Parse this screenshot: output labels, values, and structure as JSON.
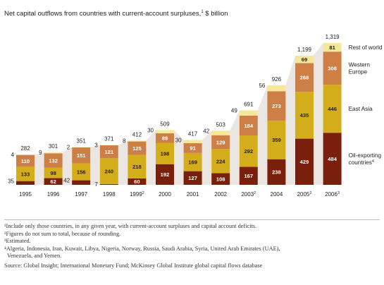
{
  "title": "Net capital outflows from countries with current-account surpluses,",
  "title_sup": "1",
  "title_unit": " $ billion",
  "colors": {
    "oil": "#7a1f0c",
    "east_asia": "#d4ad1a",
    "western_europe": "#cd7f45",
    "rest_of_world": "#f6e79a",
    "ribbon": "#ece6e2"
  },
  "chart_data": {
    "type": "bar",
    "stacked": true,
    "categories": [
      "1995",
      "1996",
      "1997",
      "1998",
      "1999",
      "2000",
      "2001",
      "2002",
      "2003",
      "2004",
      "2005",
      "2006"
    ],
    "category_sups": [
      "",
      "",
      "",
      "",
      "2",
      "",
      "",
      "",
      "2",
      "",
      "2",
      "3"
    ],
    "series": [
      {
        "key": "oil",
        "name": "Oil-exporting countries",
        "name_lines": [
          "Oil-exporting",
          "countries"
        ],
        "name_sup": "4",
        "values": [
          35,
          62,
          42,
          7,
          60,
          192,
          127,
          108,
          167,
          238,
          429,
          484
        ]
      },
      {
        "key": "east_asia",
        "name": "East Asia",
        "name_lines": [
          "East Asia"
        ],
        "name_sup": "",
        "values": [
          133,
          98,
          156,
          240,
          218,
          198,
          169,
          224,
          292,
          359,
          435,
          446
        ]
      },
      {
        "key": "western_europe",
        "name": "Western Europe",
        "name_lines": [
          "Western",
          "Europe"
        ],
        "name_sup": "",
        "values": [
          110,
          132,
          151,
          121,
          125,
          89,
          91,
          129,
          184,
          273,
          268,
          308
        ]
      },
      {
        "key": "rest_of_world",
        "name": "Rest of world",
        "name_lines": [
          "Rest of world"
        ],
        "name_sup": "",
        "values": [
          4,
          9,
          2,
          3,
          8,
          30,
          30,
          42,
          49,
          56,
          69,
          81
        ]
      }
    ],
    "totals": [
      "282",
      "301",
      "351",
      "371",
      "412",
      "509",
      "417",
      "503",
      "691",
      "926",
      "1,199",
      "1,319"
    ],
    "ylim": [
      0,
      1319
    ],
    "xlabel": "",
    "ylabel": "$ billion",
    "grid": false,
    "legend": "right"
  },
  "notes": [
    "¹Include only those countries, in any given year, with current-account surpluses and capital account deficits.",
    "²Figures do not sum to total, because of rounding.",
    "³Estimated.",
    "⁴Algeria, Indonesia, Iran, Kuwait, Libya, Nigeria, Norway, Russia, Saudi Arabia, Syria, United Arab Emirates (UAE),",
    "  Venezuela, and Yemen."
  ],
  "source": "Source: Global Insight; International Monetary Fund; McKinsey Global Institute global capital flows database"
}
